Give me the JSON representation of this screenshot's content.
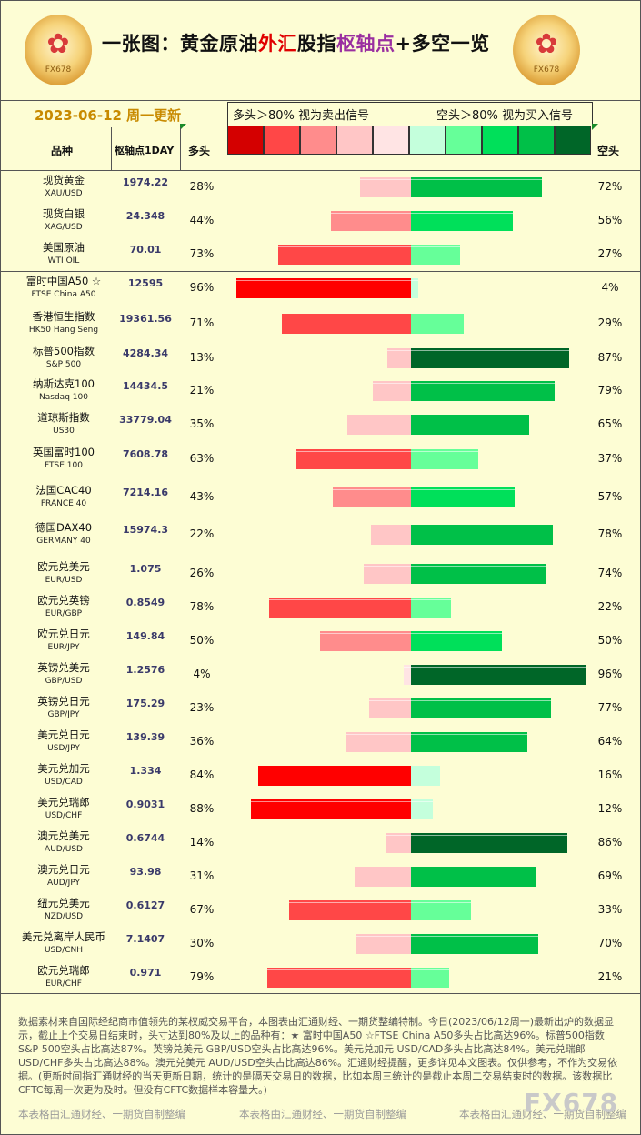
{
  "header": {
    "title_black1": "一张图：黄金原油",
    "title_red": "外汇",
    "title_black2": "股指",
    "title_purple": "枢轴点",
    "title_black3": "+多空一览",
    "date": "2023-06-12 周一更新",
    "logo_text": "FX678"
  },
  "legend": {
    "left_text": "多头＞80% 视为卖出信号",
    "right_text": "空头＞80% 视为买入信号",
    "swatches": [
      "#d40000",
      "#ff4747",
      "#ff8c8c",
      "#ffc6c6",
      "#ffe4e4",
      "#c4ffdc",
      "#66ff99",
      "#00e05a",
      "#00c048",
      "#006628"
    ]
  },
  "columns": {
    "name": "品种",
    "pivot": "枢轴点1DAY",
    "long": "多头",
    "short": "空头"
  },
  "colors": {
    "red_scale": [
      "#ffe4e4",
      "#ffc6c6",
      "#ff8c8c",
      "#ff4747",
      "#ff0000"
    ],
    "green_scale": [
      "#c4ffdc",
      "#66ff99",
      "#00e05a",
      "#00c048",
      "#006628"
    ]
  },
  "chart_data": {
    "type": "bar",
    "orientation": "horizontal-diverging",
    "series": [
      {
        "name": "多头",
        "values": [
          28,
          44,
          73,
          96,
          71,
          13,
          21,
          35,
          63,
          43,
          22,
          26,
          78,
          50,
          4,
          23,
          36,
          84,
          88,
          14,
          31,
          67,
          30,
          79
        ]
      },
      {
        "name": "空头",
        "values": [
          72,
          56,
          27,
          4,
          29,
          87,
          79,
          65,
          37,
          57,
          78,
          74,
          22,
          50,
          96,
          77,
          64,
          16,
          12,
          86,
          69,
          33,
          70,
          21
        ]
      }
    ],
    "rows": [
      {
        "name": "现货黄金",
        "code": "XAU/USD",
        "pivot": "1974.22",
        "long": 28,
        "short": 72,
        "long_label": "28%",
        "short_label": "72%"
      },
      {
        "name": "现货白银",
        "code": "XAG/USD",
        "pivot": "24.348",
        "long": 44,
        "short": 56,
        "long_label": "44%",
        "short_label": "56%"
      },
      {
        "name": "美国原油",
        "code": "WTI OIL",
        "pivot": "70.01",
        "long": 73,
        "short": 27,
        "long_label": "73%",
        "short_label": "27%"
      },
      {
        "name": "富时中国A50 ☆",
        "code": "FTSE China A50",
        "pivot": "12595",
        "long": 96,
        "short": 4,
        "long_label": "96%",
        "short_label": "4%"
      },
      {
        "name": "香港恒生指数",
        "code": "HK50 Hang Seng",
        "pivot": "19361.56",
        "long": 71,
        "short": 29,
        "long_label": "71%",
        "short_label": "29%"
      },
      {
        "name": "标普500指数",
        "code": "S&P 500",
        "pivot": "4284.34",
        "long": 13,
        "short": 87,
        "long_label": "13%",
        "short_label": "87%"
      },
      {
        "name": "纳斯达克100",
        "code": "Nasdaq 100",
        "pivot": "14434.5",
        "long": 21,
        "short": 79,
        "long_label": "21%",
        "short_label": "79%"
      },
      {
        "name": "道琼斯指数",
        "code": "US30",
        "pivot": "33779.04",
        "long": 35,
        "short": 65,
        "long_label": "35%",
        "short_label": "65%"
      },
      {
        "name": "英国富时100",
        "code": "FTSE 100",
        "pivot": "7608.78",
        "long": 63,
        "short": 37,
        "long_label": "63%",
        "short_label": "37%"
      },
      {
        "name": "法国CAC40",
        "code": "FRANCE 40",
        "pivot": "7214.16",
        "long": 43,
        "short": 57,
        "long_label": "43%",
        "short_label": "57%"
      },
      {
        "name": "德国DAX40",
        "code": "GERMANY 40",
        "pivot": "15974.3",
        "long": 22,
        "short": 78,
        "long_label": "22%",
        "short_label": "78%"
      },
      {
        "name": "欧元兑美元",
        "code": "EUR/USD",
        "pivot": "1.075",
        "long": 26,
        "short": 74,
        "long_label": "26%",
        "short_label": "74%"
      },
      {
        "name": "欧元兑英镑",
        "code": "EUR/GBP",
        "pivot": "0.8549",
        "long": 78,
        "short": 22,
        "long_label": "78%",
        "short_label": "22%"
      },
      {
        "name": "欧元兑日元",
        "code": "EUR/JPY",
        "pivot": "149.84",
        "long": 50,
        "short": 50,
        "long_label": "50%",
        "short_label": "50%"
      },
      {
        "name": "英镑兑美元",
        "code": "GBP/USD",
        "pivot": "1.2576",
        "long": 4,
        "short": 96,
        "long_label": "4%",
        "short_label": "96%"
      },
      {
        "name": "英镑兑日元",
        "code": "GBP/JPY",
        "pivot": "175.29",
        "long": 23,
        "short": 77,
        "long_label": "23%",
        "short_label": "77%"
      },
      {
        "name": "美元兑日元",
        "code": "USD/JPY",
        "pivot": "139.39",
        "long": 36,
        "short": 64,
        "long_label": "36%",
        "short_label": "64%"
      },
      {
        "name": "美元兑加元",
        "code": "USD/CAD",
        "pivot": "1.334",
        "long": 84,
        "short": 16,
        "long_label": "84%",
        "short_label": "16%"
      },
      {
        "name": "美元兑瑞郎",
        "code": "USD/CHF",
        "pivot": "0.9031",
        "long": 88,
        "short": 12,
        "long_label": "88%",
        "short_label": "12%"
      },
      {
        "name": "澳元兑美元",
        "code": "AUD/USD",
        "pivot": "0.6744",
        "long": 14,
        "short": 86,
        "long_label": "14%",
        "short_label": "86%"
      },
      {
        "name": "澳元兑日元",
        "code": "AUD/JPY",
        "pivot": "93.98",
        "long": 31,
        "short": 69,
        "long_label": "31%",
        "short_label": "69%"
      },
      {
        "name": "纽元兑美元",
        "code": "NZD/USD",
        "pivot": "0.6127",
        "long": 67,
        "short": 33,
        "long_label": "67%",
        "short_label": "33%"
      },
      {
        "name": "美元兑离岸人民币",
        "code": "USD/CNH",
        "pivot": "7.1407",
        "long": 30,
        "short": 70,
        "long_label": "30%",
        "short_label": "70%"
      },
      {
        "name": "欧元兑瑞郎",
        "code": "EUR/CHF",
        "pivot": "0.971",
        "long": 79,
        "short": 21,
        "long_label": "79%",
        "short_label": "21%"
      }
    ]
  },
  "footer": {
    "text": "数据素材来自国际经纪商市值领先的某权威交易平台，本图表由汇通财经、一期货整编特制。今日(2023/06/12周一)最新出炉的数据显示，截止上个交易日结束时，头寸达到80%及以上的品种有：★ 富时中国A50 ☆FTSE China A50多头占比高达96%。标普500指数 S&P 500空头占比高达87%。英镑兑美元 GBP/USD空头占比高达96%。美元兑加元 USD/CAD多头占比高达84%。美元兑瑞郎 USD/CHF多头占比高达88%。澳元兑美元 AUD/USD空头占比高达86%。汇通财经提醒，更多详见本文图表。仅供参考，不作为交易依据。(更新时间指汇通财经的当天更新日期，统计的是隔天交易日的数据，比如本周三统计的是截止本周二交易结束时的数据。该数据比CFTC每周一次更为及时。但没有CFTC数据样本容量大。)",
    "credit": "本表格由汇通财经、一期货自制整编",
    "watermark": "FX678"
  }
}
